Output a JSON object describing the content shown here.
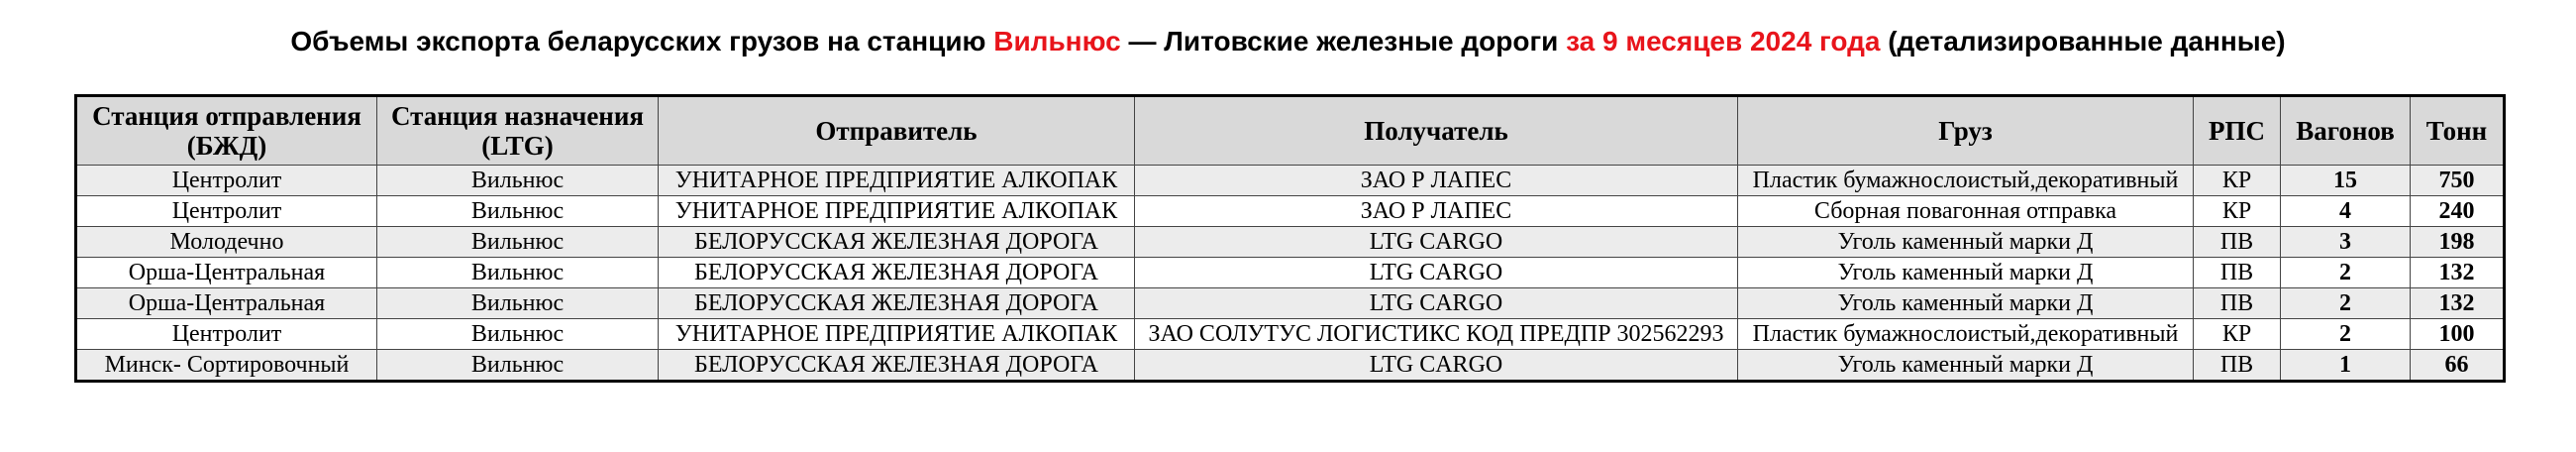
{
  "header": {
    "title": [
      {
        "text": "Объемы экспорта беларусских грузов на станцию ",
        "highlight": false
      },
      {
        "text": "Вильнюс",
        "highlight": true
      },
      {
        "text": " — Литовские железные дороги ",
        "highlight": false
      },
      {
        "text": "за 9 месяцев 2024 года",
        "highlight": true
      },
      {
        "text": " (детализированные данные)",
        "highlight": false
      }
    ]
  },
  "table": {
    "columns": [
      "Станция отправления (БЖД)",
      "Станция назначения (LTG)",
      "Отправитель",
      "Получатель",
      "Груз",
      "РПС",
      "Вагонов",
      "Тонн"
    ],
    "rows": [
      [
        "Центролит",
        "Вильнюс",
        "УНИТАРНОЕ ПРЕДПРИЯТИЕ АЛКОПАК",
        "ЗАО Р ЛАПЕС",
        "Пластик бумажнослоистый,декоративный",
        "КР",
        15,
        750
      ],
      [
        "Центролит",
        "Вильнюс",
        "УНИТАРНОЕ ПРЕДПРИЯТИЕ АЛКОПАК",
        "ЗАО Р ЛАПЕС",
        "Сборная повагонная отправка",
        "КР",
        4,
        240
      ],
      [
        "Молодечно",
        "Вильнюс",
        "БЕЛОРУССКАЯ ЖЕЛЕЗНАЯ ДОРОГА",
        "LTG CARGO",
        "Уголь каменный марки Д",
        "ПВ",
        3,
        198
      ],
      [
        "Орша-Центральная",
        "Вильнюс",
        "БЕЛОРУССКАЯ ЖЕЛЕЗНАЯ ДОРОГА",
        "LTG CARGO",
        "Уголь каменный марки Д",
        "ПВ",
        2,
        132
      ],
      [
        "Орша-Центральная",
        "Вильнюс",
        "БЕЛОРУССКАЯ ЖЕЛЕЗНАЯ ДОРОГА",
        "LTG CARGO",
        "Уголь каменный марки Д",
        "ПВ",
        2,
        132
      ],
      [
        "Центролит",
        "Вильнюс",
        "УНИТАРНОЕ ПРЕДПРИЯТИЕ АЛКОПАК",
        "ЗАО СОЛУТУС ЛОГИСТИКС КОД ПРЕДПР 302562293",
        "Пластик бумажнослоистый,декоративный",
        "КР",
        2,
        100
      ],
      [
        "Минск- Сортировочный",
        "Вильнюс",
        "БЕЛОРУССКАЯ ЖЕЛЕЗНАЯ ДОРОГА",
        "LTG CARGO",
        "Уголь каменный марки Д",
        "ПВ",
        1,
        66
      ]
    ]
  }
}
